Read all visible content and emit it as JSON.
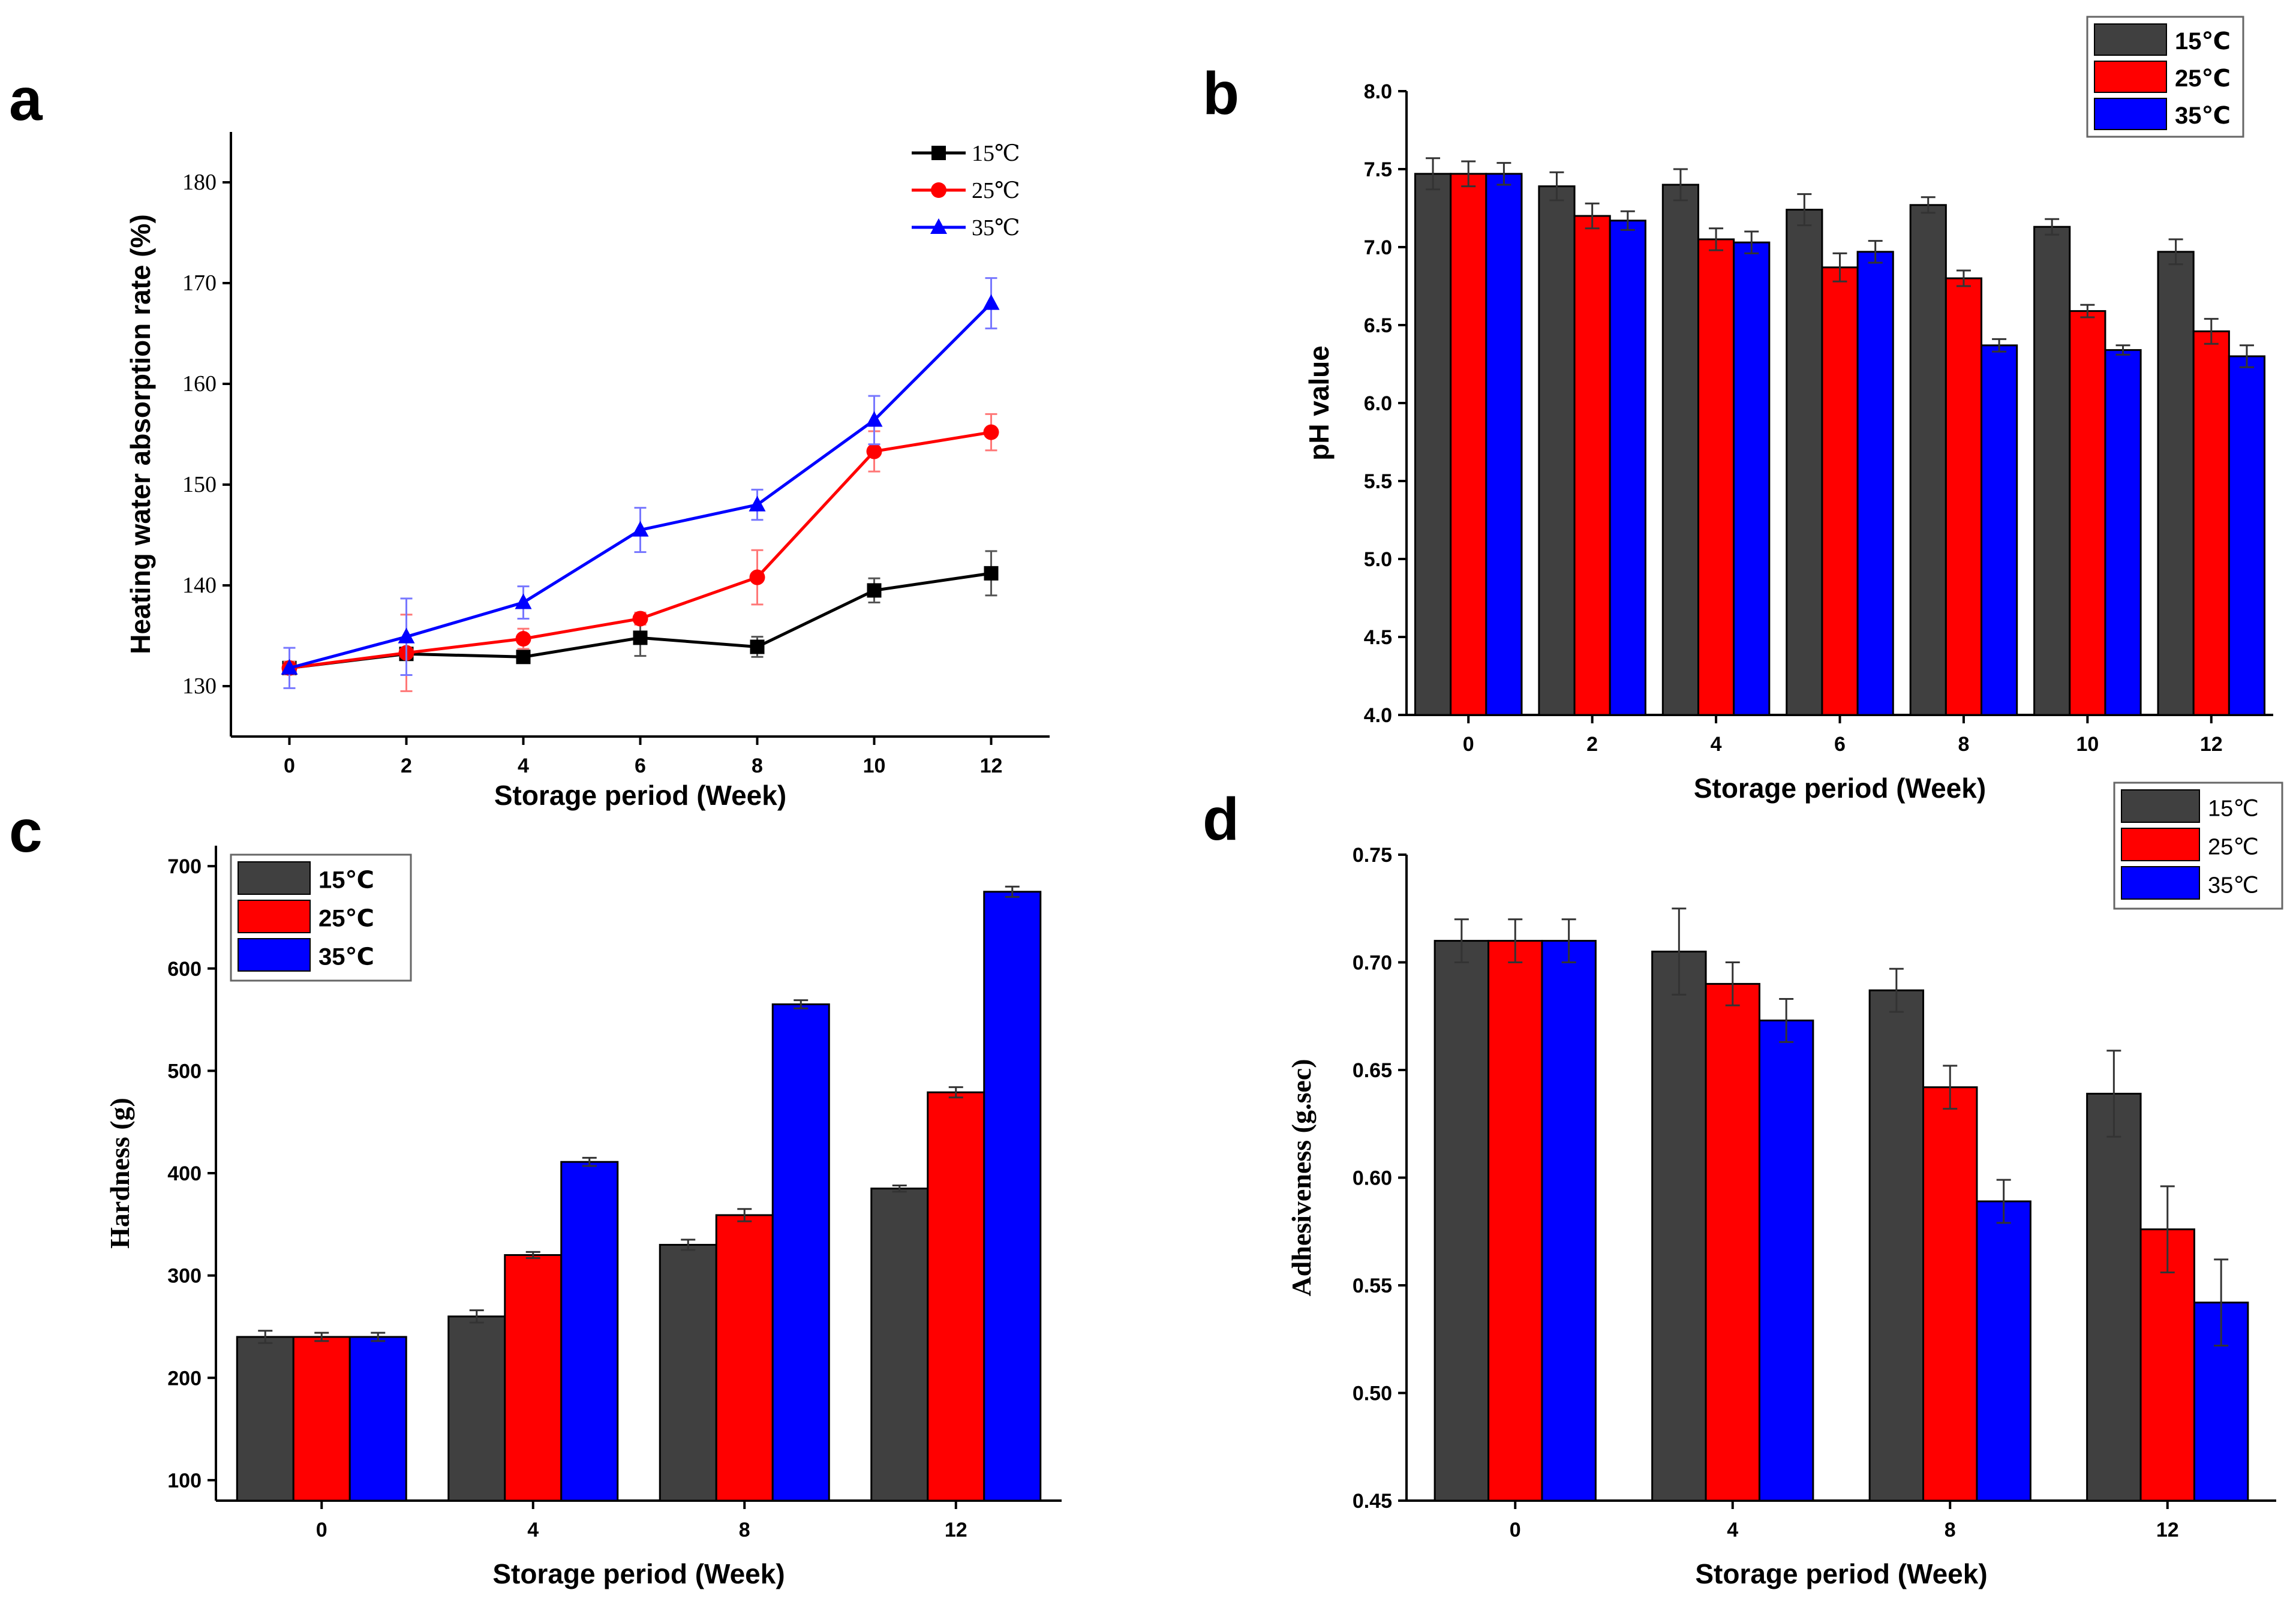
{
  "chart_data": [
    {
      "id": "a",
      "panel_label": "a",
      "type": "line",
      "x": [
        0,
        2,
        4,
        6,
        8,
        10,
        12
      ],
      "xticks": [
        "0",
        "2",
        "4",
        "6",
        "8",
        "10",
        "12"
      ],
      "yticks": [
        "130",
        "140",
        "150",
        "160",
        "170",
        "180"
      ],
      "xlabel": "Storage period (Week)",
      "ylabel": "Heating water absorption rate (%)",
      "xlim": [
        -1,
        13
      ],
      "ylim": [
        125,
        185
      ],
      "legend_position": "top-right",
      "series": [
        {
          "name": "15℃",
          "color": "#000000",
          "marker": "square",
          "values": [
            131.8,
            133.2,
            132.9,
            134.8,
            133.9,
            139.5,
            141.2
          ],
          "errors": [
            0.6,
            0.5,
            0.6,
            1.8,
            1.0,
            1.2,
            2.2
          ]
        },
        {
          "name": "25℃",
          "color": "#ff0000",
          "marker": "circle",
          "values": [
            131.8,
            133.3,
            134.7,
            136.7,
            140.8,
            153.3,
            155.2
          ],
          "errors": [
            0.6,
            3.8,
            1.0,
            0.6,
            2.7,
            2.0,
            1.8
          ]
        },
        {
          "name": "35℃",
          "color": "#0000ff",
          "marker": "triangle",
          "values": [
            131.8,
            134.9,
            138.3,
            145.5,
            148.0,
            156.4,
            168.0
          ],
          "errors": [
            2.0,
            3.8,
            1.6,
            2.2,
            1.5,
            2.4,
            2.5
          ]
        }
      ]
    },
    {
      "id": "b",
      "panel_label": "b",
      "type": "bar",
      "categories": [
        "0",
        "2",
        "4",
        "6",
        "8",
        "10",
        "12"
      ],
      "yticks": [
        "4.0",
        "4.5",
        "5.0",
        "5.5",
        "6.0",
        "6.5",
        "7.0",
        "7.5",
        "8.0"
      ],
      "xlabel": "Storage period (Week)",
      "ylabel": "pH value",
      "ylim": [
        4.0,
        8.0
      ],
      "legend_position": "top-right, outside",
      "series": [
        {
          "name": "15℃",
          "color": "#404040",
          "values": [
            7.47,
            7.39,
            7.4,
            7.24,
            7.27,
            7.13,
            6.97
          ],
          "errors": [
            0.1,
            0.09,
            0.1,
            0.1,
            0.05,
            0.05,
            0.08
          ]
        },
        {
          "name": "25℃",
          "color": "#ff0000",
          "values": [
            7.47,
            7.2,
            7.05,
            6.87,
            6.8,
            6.59,
            6.46
          ],
          "errors": [
            0.08,
            0.08,
            0.07,
            0.09,
            0.05,
            0.04,
            0.08
          ]
        },
        {
          "name": "35℃",
          "color": "#0000ff",
          "values": [
            7.47,
            7.17,
            7.03,
            6.97,
            6.37,
            6.34,
            6.3
          ],
          "errors": [
            0.07,
            0.06,
            0.07,
            0.07,
            0.04,
            0.03,
            0.07
          ]
        }
      ]
    },
    {
      "id": "c",
      "panel_label": "c",
      "type": "bar",
      "categories": [
        "0",
        "4",
        "8",
        "12"
      ],
      "yticks": [
        "100",
        "200",
        "300",
        "400",
        "500",
        "600",
        "700"
      ],
      "xlabel": "Storage period (Week)",
      "ylabel": "Hardness (g)",
      "ylim": [
        80,
        720
      ],
      "legend_position": "top-left",
      "series": [
        {
          "name": "15℃",
          "color": "#404040",
          "values": [
            240,
            260,
            330,
            385
          ],
          "errors": [
            6,
            6,
            5,
            3
          ]
        },
        {
          "name": "25℃",
          "color": "#ff0000",
          "values": [
            240,
            320,
            359,
            479
          ],
          "errors": [
            4,
            3,
            6,
            5
          ]
        },
        {
          "name": "35℃",
          "color": "#0000ff",
          "values": [
            240,
            411,
            565,
            675
          ],
          "errors": [
            4,
            4,
            4,
            5
          ]
        }
      ]
    },
    {
      "id": "d",
      "panel_label": "d",
      "type": "bar",
      "categories": [
        "0",
        "4",
        "8",
        "12"
      ],
      "yticks": [
        "0.45",
        "0.50",
        "0.55",
        "0.60",
        "0.65",
        "0.70",
        "0.75"
      ],
      "xlabel": "Storage period (Week)",
      "ylabel": "Adhesiveness (g.sec)",
      "ylim": [
        0.45,
        0.75
      ],
      "legend_position": "top-right, outside",
      "series": [
        {
          "name": "15℃",
          "color": "#404040",
          "values": [
            0.71,
            0.705,
            0.687,
            0.639
          ],
          "errors": [
            0.01,
            0.02,
            0.01,
            0.02
          ]
        },
        {
          "name": "25℃",
          "color": "#ff0000",
          "values": [
            0.71,
            0.69,
            0.642,
            0.576
          ],
          "errors": [
            0.01,
            0.01,
            0.01,
            0.02
          ]
        },
        {
          "name": "35℃",
          "color": "#0000ff",
          "values": [
            0.71,
            0.673,
            0.589,
            0.542
          ],
          "errors": [
            0.01,
            0.01,
            0.01,
            0.02
          ]
        }
      ]
    }
  ]
}
